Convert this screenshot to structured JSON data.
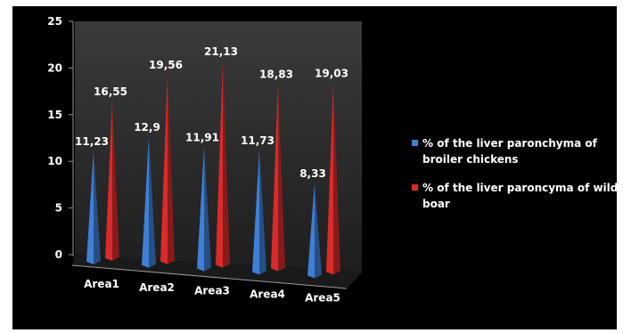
{
  "chart_data": {
    "type": "bar",
    "shape": "3d-pyramid",
    "categories": [
      "Area1",
      "Area2",
      "Area3",
      "Area4",
      "Area5"
    ],
    "series": [
      {
        "name": "% of the liver paronchyma of broiler chickens",
        "legend_lines": [
          "% of the liver paronchyma of",
          "broiler chickens"
        ],
        "values": [
          11.23,
          12.9,
          11.91,
          11.73,
          8.33
        ],
        "labels": [
          "11,23",
          "12,9",
          "11,91",
          "11,73",
          "8,33"
        ],
        "color": "#3f7fd6"
      },
      {
        "name": "% of the liver paroncyma of wild boar",
        "legend_lines": [
          "% of the liver paroncyma of wild",
          "boar"
        ],
        "values": [
          16.55,
          19.56,
          21.13,
          18.83,
          19.03
        ],
        "labels": [
          "16,55",
          "19,56",
          "21,13",
          "18,83",
          "19,03"
        ],
        "color": "#d92b2b"
      }
    ],
    "yticks": [
      0,
      5,
      10,
      15,
      20,
      25
    ],
    "ylim": [
      0,
      25
    ],
    "grid": false,
    "legend_position": "right",
    "background": "#000000",
    "axis_color": "#9a9a9a",
    "wall_color": "#2a2a2a"
  }
}
